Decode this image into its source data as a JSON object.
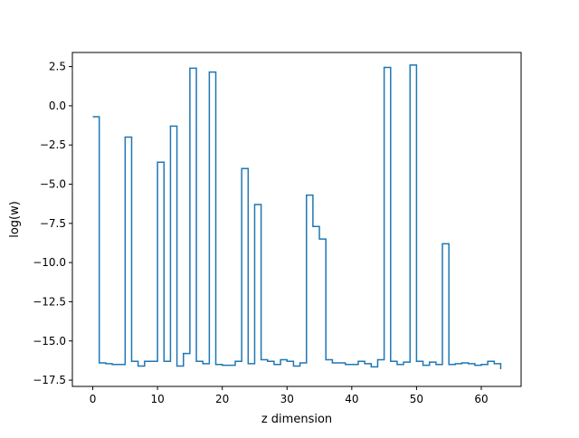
{
  "chart_data": {
    "type": "line",
    "drawstyle": "steps-post",
    "title": "",
    "xlabel": "z dimension",
    "ylabel": "log(w)",
    "xlim": [
      -3.15,
      66.15
    ],
    "ylim": [
      -17.9,
      3.4
    ],
    "xticks": [
      0,
      10,
      20,
      30,
      40,
      50,
      60
    ],
    "xtick_labels": [
      "0",
      "10",
      "20",
      "30",
      "40",
      "50",
      "60"
    ],
    "yticks": [
      2.5,
      0,
      -2.5,
      -5,
      -7.5,
      -10,
      -12.5,
      -15,
      -17.5
    ],
    "ytick_labels": [
      "2.5",
      "0.0",
      "−2.5",
      "−5.0",
      "−7.5",
      "−10.0",
      "−12.5",
      "−15.0",
      "−17.5"
    ],
    "grid": false,
    "series": [
      {
        "color": "#1f77b4",
        "x": [
          0,
          1,
          2,
          3,
          4,
          5,
          6,
          7,
          8,
          9,
          10,
          11,
          12,
          13,
          14,
          15,
          16,
          17,
          18,
          19,
          20,
          21,
          22,
          23,
          24,
          25,
          26,
          27,
          28,
          29,
          30,
          31,
          32,
          33,
          34,
          35,
          36,
          37,
          38,
          39,
          40,
          41,
          42,
          43,
          44,
          45,
          46,
          47,
          48,
          49,
          50,
          51,
          52,
          53,
          54,
          55,
          56,
          57,
          58,
          59,
          60,
          61,
          62,
          63
        ],
        "values": [
          -0.7,
          -16.4,
          -16.45,
          -16.5,
          -16.5,
          -2.0,
          -16.3,
          -16.6,
          -16.3,
          -16.3,
          -3.6,
          -16.3,
          -1.3,
          -16.6,
          -15.8,
          2.4,
          -16.3,
          -16.45,
          2.15,
          -16.5,
          -16.55,
          -16.55,
          -16.3,
          -4.0,
          -16.45,
          -6.3,
          -16.2,
          -16.3,
          -16.5,
          -16.2,
          -16.3,
          -16.6,
          -16.4,
          -5.7,
          -7.7,
          -8.5,
          -16.2,
          -16.4,
          -16.4,
          -16.5,
          -16.5,
          -16.3,
          -16.45,
          -16.65,
          -16.2,
          2.45,
          -16.3,
          -16.5,
          -16.35,
          2.6,
          -16.3,
          -16.55,
          -16.35,
          -16.5,
          -8.8,
          -16.5,
          -16.45,
          -16.4,
          -16.45,
          -16.55,
          -16.5,
          -16.3,
          -16.45,
          -16.8
        ]
      }
    ]
  }
}
